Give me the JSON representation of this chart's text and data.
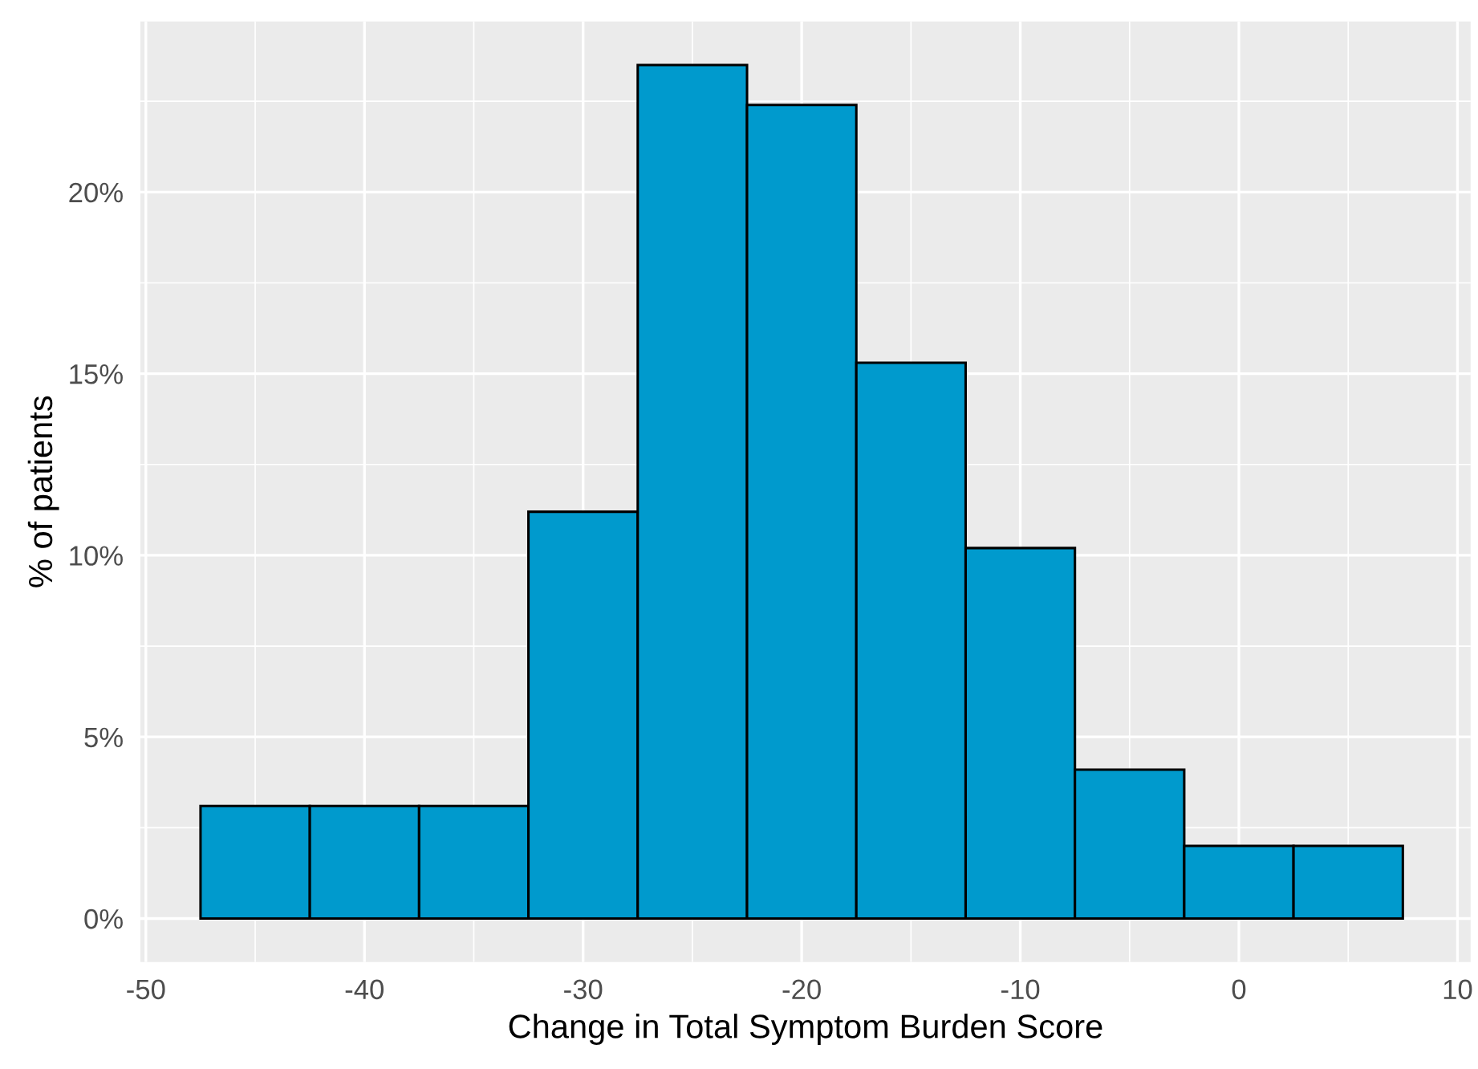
{
  "chart_data": {
    "type": "histogram",
    "xlabel": "Change in Total Symptom Burden Score",
    "ylabel": "% of patients",
    "bins": [
      -47.5,
      -42.5,
      -37.5,
      -32.5,
      -27.5,
      -22.5,
      -17.5,
      -12.5,
      -7.5,
      -2.5,
      2.5,
      7.5
    ],
    "values": [
      3.1,
      3.1,
      3.1,
      11.2,
      23.5,
      22.4,
      15.3,
      10.2,
      4.1,
      2.0,
      2.0
    ],
    "color": "#009acd",
    "xlim": [
      -50.25,
      10.6
    ],
    "xticks": [
      -50,
      -40,
      -30,
      -20,
      -10,
      0,
      10
    ],
    "ylim": [
      -1.2,
      24.7
    ],
    "yticks": [
      {
        "value": 0,
        "label": "0%"
      },
      {
        "value": 5,
        "label": "5%"
      },
      {
        "value": 10,
        "label": "10%"
      },
      {
        "value": 15,
        "label": "15%"
      },
      {
        "value": 20,
        "label": "20%"
      }
    ],
    "grid": true
  }
}
